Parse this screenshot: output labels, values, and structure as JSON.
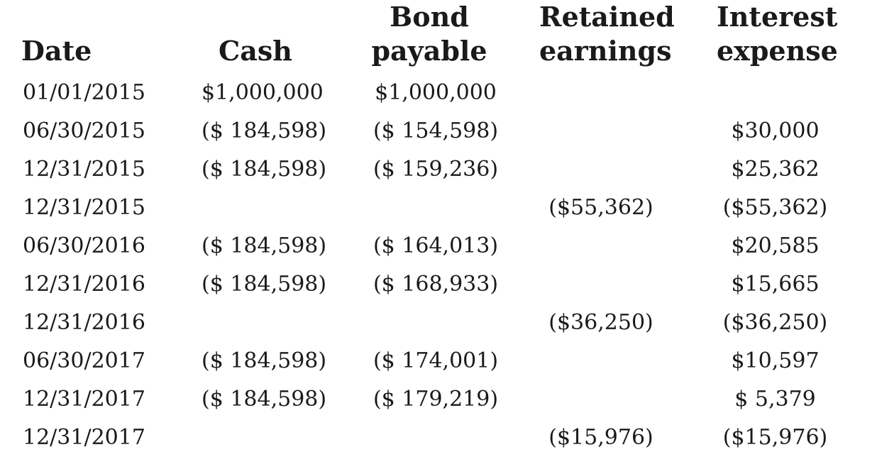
{
  "headers": {
    "date": [
      "Date"
    ],
    "cash": [
      "Cash"
    ],
    "bond_payable": [
      "Bond",
      "payable"
    ],
    "retained_earnings": [
      "Retained",
      "earnings"
    ],
    "interest_expense": [
      "Interest",
      "expense"
    ]
  },
  "rows": [
    {
      "date": "01/01/2015",
      "cash": "$1,000,000",
      "bond_payable": "$1,000,000",
      "retained_earnings": "",
      "interest_expense": ""
    },
    {
      "date": "06/30/2015",
      "cash": "($ 184,598)",
      "bond_payable": "($ 154,598)",
      "retained_earnings": "",
      "interest_expense": "$30,000"
    },
    {
      "date": "12/31/2015",
      "cash": "($ 184,598)",
      "bond_payable": "($ 159,236)",
      "retained_earnings": "",
      "interest_expense": "$25,362"
    },
    {
      "date": "12/31/2015",
      "cash": "",
      "bond_payable": "",
      "retained_earnings": "($55,362)",
      "interest_expense": "($55,362)"
    },
    {
      "date": "06/30/2016",
      "cash": "($ 184,598)",
      "bond_payable": "($ 164,013)",
      "retained_earnings": "",
      "interest_expense": "$20,585"
    },
    {
      "date": "12/31/2016",
      "cash": "($ 184,598)",
      "bond_payable": "($ 168,933)",
      "retained_earnings": "",
      "interest_expense": "$15,665"
    },
    {
      "date": "12/31/2016",
      "cash": "",
      "bond_payable": "",
      "retained_earnings": "($36,250)",
      "interest_expense": "($36,250)"
    },
    {
      "date": "06/30/2017",
      "cash": "($ 184,598)",
      "bond_payable": "($ 174,001)",
      "retained_earnings": "",
      "interest_expense": "$10,597"
    },
    {
      "date": "12/31/2017",
      "cash": "($ 184,598)",
      "bond_payable": "($ 179,219)",
      "retained_earnings": "",
      "interest_expense": "$ 5,379"
    },
    {
      "date": "12/31/2017",
      "cash": "",
      "bond_payable": "",
      "retained_earnings": "($15,976)",
      "interest_expense": "($15,976)"
    }
  ]
}
